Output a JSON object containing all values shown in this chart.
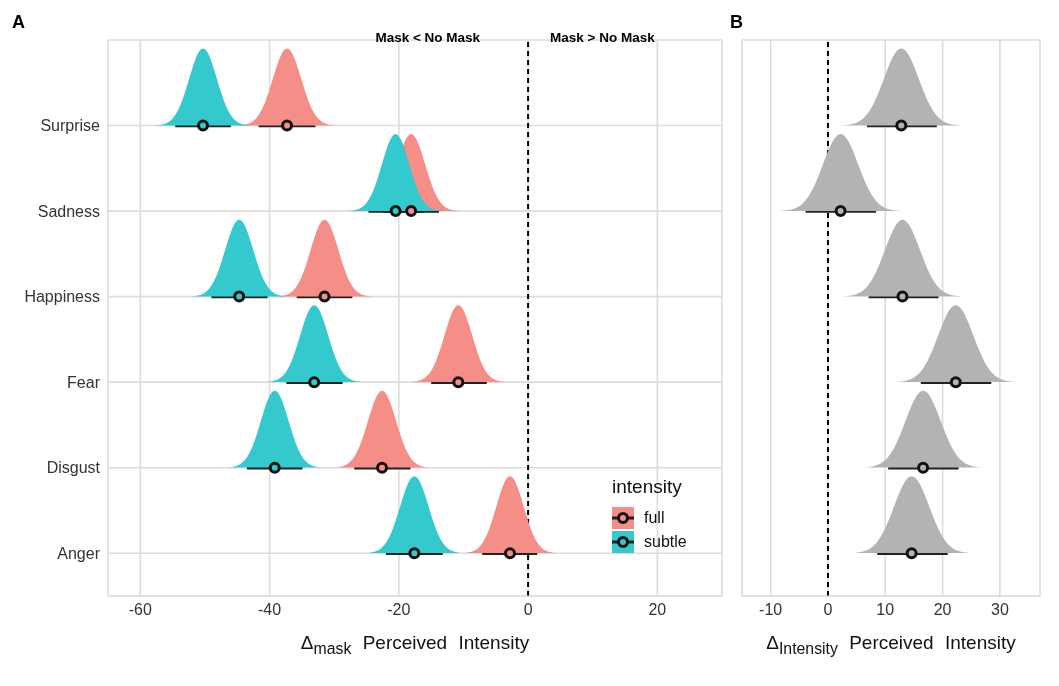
{
  "chart_data": [
    {
      "type": "scatter",
      "title": "A",
      "orientation": "horizontal",
      "categories": [
        "Surprise",
        "Sadness",
        "Happiness",
        "Fear",
        "Disgust",
        "Anger"
      ],
      "series": [
        {
          "name": "full",
          "color": "#f48e87",
          "values": [
            -37.3,
            -18.1,
            -31.5,
            -10.8,
            -22.6,
            -2.8
          ],
          "errors": [
            [
              -41.7,
              -32.9
            ],
            [
              -22.5,
              -13.8
            ],
            [
              -35.8,
              -27.2
            ],
            [
              -15.0,
              -6.4
            ],
            [
              -26.9,
              -18.2
            ],
            [
              -7.1,
              1.4
            ]
          ]
        },
        {
          "name": "subtle",
          "color": "#33c9cd",
          "values": [
            -50.3,
            -20.5,
            -44.7,
            -33.1,
            -39.2,
            -17.6
          ],
          "errors": [
            [
              -54.6,
              -46.0
            ],
            [
              -24.7,
              -16.2
            ],
            [
              -49.0,
              -40.3
            ],
            [
              -37.4,
              -28.7
            ],
            [
              -43.5,
              -34.9
            ],
            [
              -22.0,
              -13.2
            ]
          ]
        }
      ],
      "xlim": [
        -65,
        30
      ],
      "xticks": [
        -60,
        -40,
        -20,
        0,
        20
      ],
      "xlabel": "Δ$_{mask}$ Perceived Intensity",
      "legend_title": "intensity",
      "legend": "bottom right",
      "marker": "circle",
      "grid": true,
      "ref_lines": [
        {
          "axis": "x",
          "value": 0,
          "line_style": "dashed",
          "color": "#000000"
        }
      ],
      "annotations": [
        "Mask < No Mask",
        "Mask > No Mask"
      ]
    },
    {
      "type": "scatter",
      "title": "B",
      "orientation": "horizontal",
      "categories": [
        null,
        null,
        null,
        null,
        null,
        null
      ],
      "series": [
        {
          "color": "#b3b3b3",
          "values": [
            12.8,
            2.2,
            13.0,
            22.3,
            16.6,
            14.6
          ],
          "errors": [
            [
              6.8,
              19.0
            ],
            [
              -3.9,
              8.4
            ],
            [
              7.1,
              19.3
            ],
            [
              16.2,
              28.5
            ],
            [
              10.5,
              22.8
            ],
            [
              8.6,
              20.9
            ]
          ]
        }
      ],
      "xlim": [
        -15,
        37
      ],
      "xticks": [
        -10,
        0,
        10,
        20,
        30
      ],
      "xlabel": "Δ$_{Intensity}$ Perceived Intensity",
      "tick_labels": "x",
      "marker": "circle",
      "grid": true,
      "ref_lines": [
        {
          "axis": "x",
          "value": 0,
          "line_style": "dashed",
          "color": "#000000"
        }
      ]
    }
  ]
}
